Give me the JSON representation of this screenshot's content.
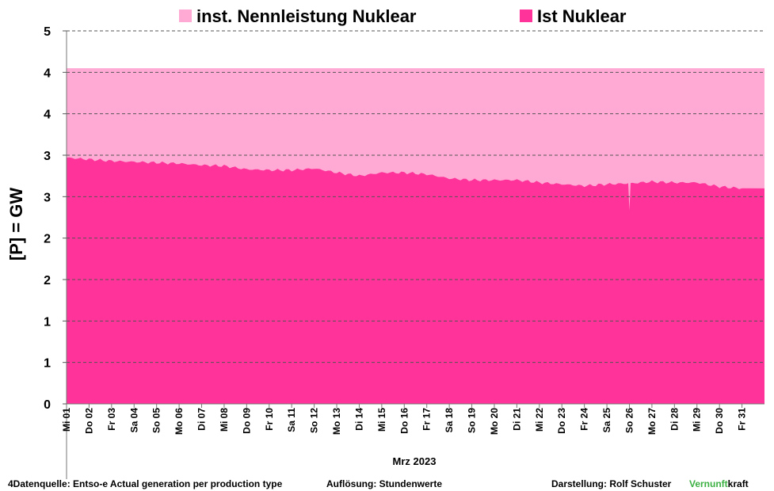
{
  "chart_data": {
    "type": "area",
    "title": "",
    "ylabel": "[P]  =  GW",
    "xlabel": "Mrz 2023",
    "ylim": [
      0,
      4.5
    ],
    "y_tick_labels": [
      "0",
      "1",
      "1",
      "2",
      "2",
      "3",
      "3",
      "4",
      "4",
      "5"
    ],
    "categories": [
      "Mi 01",
      "Do 02",
      "Fr 03",
      "Sa 04",
      "So 05",
      "Mo 06",
      "Di 07",
      "Mi 08",
      "Do 09",
      "Fr 10",
      "Sa 11",
      "So 12",
      "Mo 13",
      "Di 14",
      "Mi 15",
      "Do 16",
      "Fr 17",
      "Sa 18",
      "So 19",
      "Mo 20",
      "Di 21",
      "Mi 22",
      "Do 23",
      "Fr 24",
      "Sa 25",
      "So 26",
      "Mo 27",
      "Di 28",
      "Mi 29",
      "Do 30",
      "Fr 31"
    ],
    "legend": {
      "placement": "top",
      "grid": "horizontal dashed"
    },
    "series": [
      {
        "name": "inst. Nennleistung Nuklear",
        "color": "#ffaad5",
        "values": [
          4.05,
          4.05,
          4.05,
          4.05,
          4.05,
          4.05,
          4.05,
          4.05,
          4.05,
          4.05,
          4.05,
          4.05,
          4.05,
          4.05,
          4.05,
          4.05,
          4.05,
          4.05,
          4.05,
          4.05,
          4.05,
          4.05,
          4.05,
          4.05,
          4.05,
          4.05,
          4.05,
          4.05,
          4.05,
          4.05,
          4.05
        ]
      },
      {
        "name": "Ist Nuklear",
        "color": "#ff3399",
        "values": [
          2.97,
          2.95,
          2.93,
          2.92,
          2.91,
          2.9,
          2.88,
          2.87,
          2.83,
          2.82,
          2.82,
          2.84,
          2.79,
          2.75,
          2.79,
          2.79,
          2.77,
          2.72,
          2.7,
          2.7,
          2.7,
          2.67,
          2.65,
          2.63,
          2.65,
          2.66,
          2.68,
          2.67,
          2.67,
          2.62,
          2.6
        ],
        "dip": {
          "day": "So 26",
          "value": 2.33
        }
      }
    ]
  },
  "footer": {
    "source": "4Datenquelle: Entso-e  Actual generation per production type",
    "resolution": "Auflösung: Stundenwerte",
    "author": "Darstellung:  Rolf Schuster",
    "brand_green": "Vernunft",
    "brand_black": "kraft"
  }
}
